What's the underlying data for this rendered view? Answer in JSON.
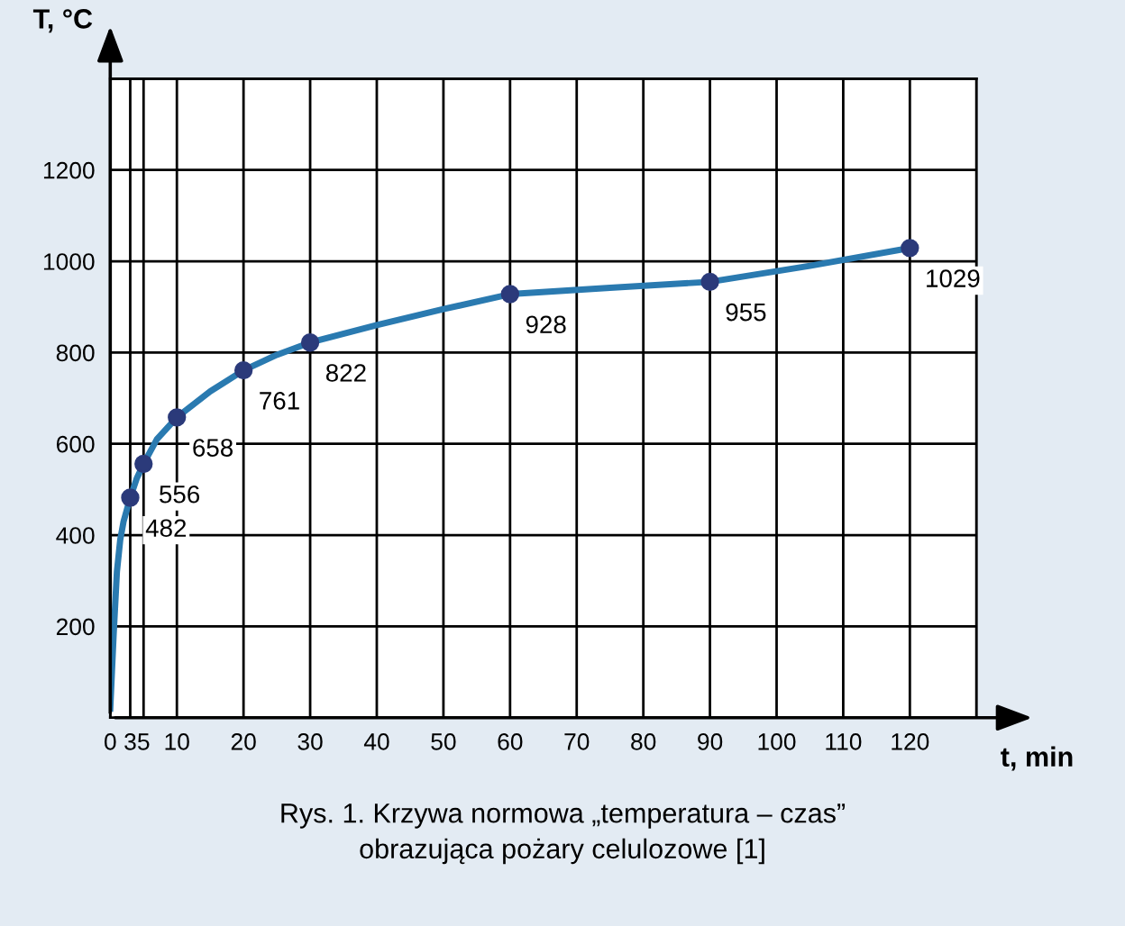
{
  "chart_data": {
    "type": "line",
    "xlabel": "t, min",
    "ylabel": "T, °C",
    "xlim": [
      0,
      130
    ],
    "ylim": [
      0,
      1400
    ],
    "xticks": [
      0,
      3,
      5,
      10,
      20,
      30,
      40,
      50,
      60,
      70,
      80,
      90,
      100,
      110,
      120,
      {
        "value": 130,
        "label": null
      }
    ],
    "yticks": [
      200,
      400,
      600,
      800,
      1000,
      1200,
      {
        "value": 1400,
        "label": null
      }
    ],
    "grid": true,
    "legend": false,
    "series": [
      {
        "color": "#2a7ab0",
        "marker": "none",
        "x": [
          0,
          0.25,
          0.5,
          1,
          1.5,
          2,
          3,
          4,
          5,
          7,
          10,
          15,
          20,
          25,
          30,
          40,
          50,
          60,
          75,
          90,
          105,
          120
        ],
        "values": [
          20,
          100,
          180,
          320,
          390,
          430,
          482,
          525,
          556,
          610,
          658,
          715,
          761,
          795,
          822,
          860,
          895,
          928,
          942,
          955,
          990,
          1029
        ]
      },
      {
        "type": "scatter",
        "color": "#2b3a7a",
        "marker": "circle",
        "x": [
          3,
          5,
          10,
          20,
          30,
          60,
          90,
          120
        ],
        "values": [
          482,
          556,
          658,
          761,
          822,
          928,
          955,
          1029
        ],
        "value_labels": [
          "482",
          "556",
          "658",
          "761",
          "822",
          "928",
          "955",
          "1029"
        ]
      }
    ],
    "annotations": [
      "Rys. 1. Krzywa normowa „temperatura – czas”\nobrazująca pożary celulozowe [1]"
    ]
  }
}
